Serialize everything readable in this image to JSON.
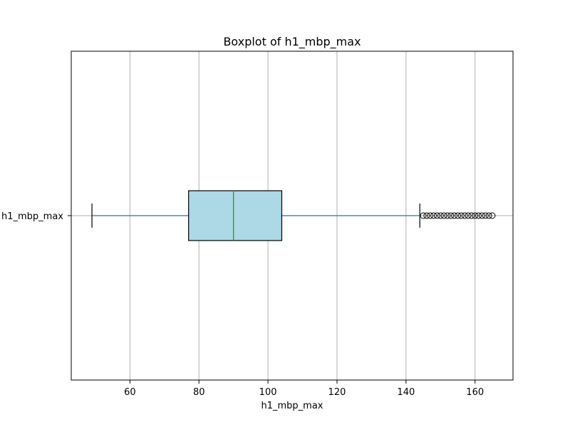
{
  "chart_data": {
    "type": "boxplot",
    "orientation": "horizontal",
    "title": "Boxplot of h1_mbp_max",
    "xlabel": "h1_mbp_max",
    "ylabel": "",
    "category": "h1_mbp_max",
    "xlim": [
      43,
      171
    ],
    "xticks": [
      60,
      80,
      100,
      120,
      140,
      160
    ],
    "grid": "vertical",
    "box": {
      "whisker_low": 49,
      "q1": 77,
      "median": 90,
      "q3": 104,
      "whisker_high": 144
    },
    "outliers": [
      145,
      146,
      147,
      148,
      149,
      150,
      151,
      152,
      153,
      154,
      155,
      156,
      157,
      158,
      159,
      160,
      161,
      162,
      163,
      164,
      165
    ],
    "colors": {
      "box_fill": "#add8e6",
      "median": "#2ca02c",
      "whisker": "#1f77b4",
      "grid": "#b0b0b0"
    }
  }
}
